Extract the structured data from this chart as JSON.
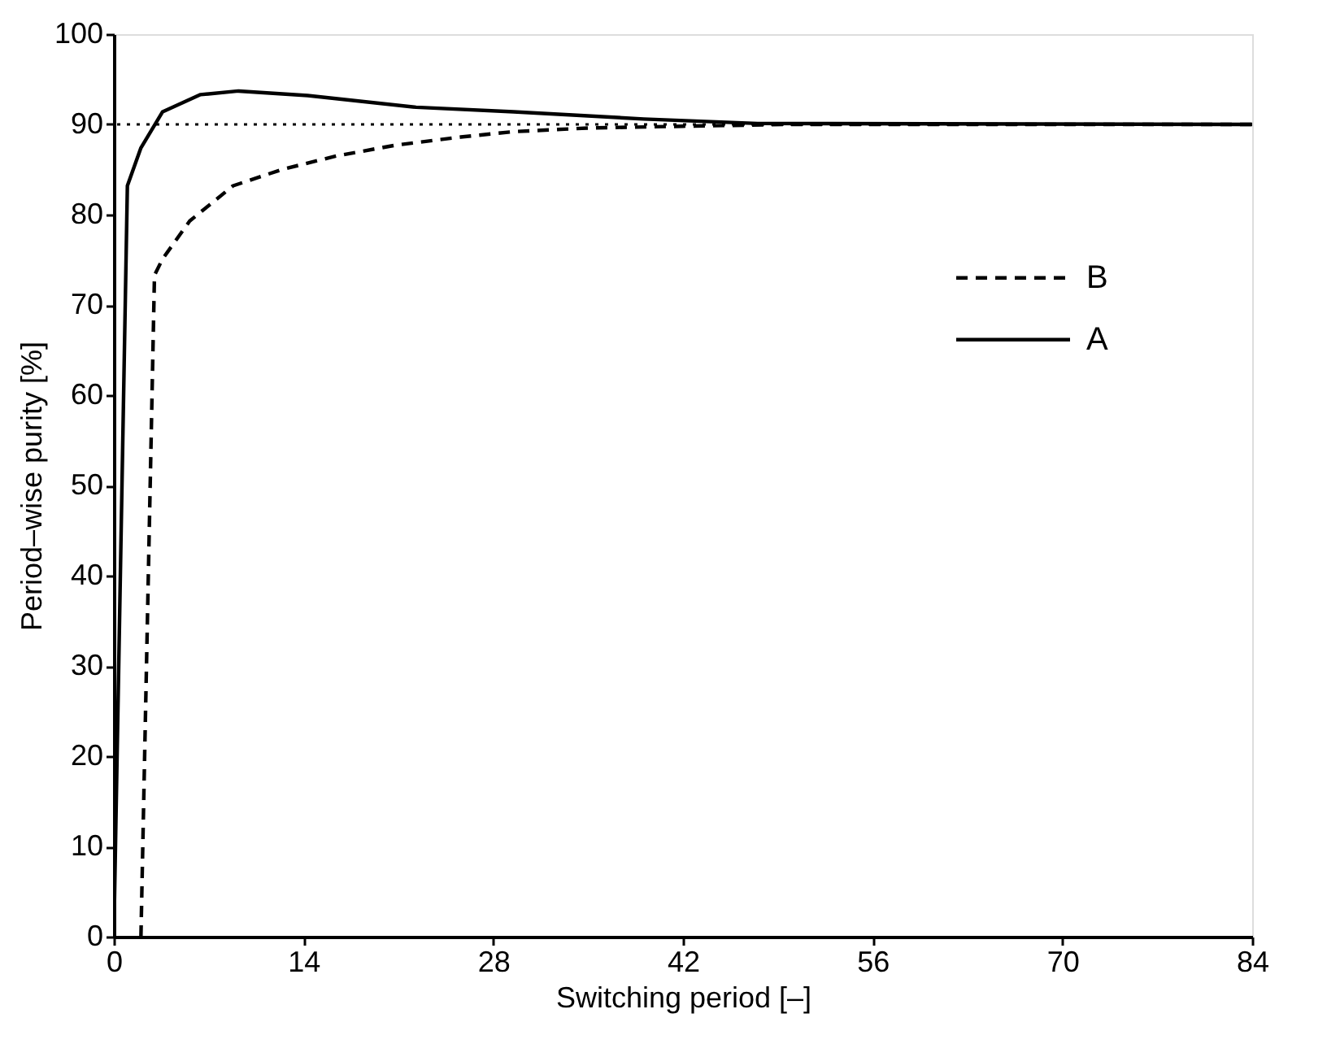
{
  "chart_data": {
    "type": "line",
    "xlabel": "Switching period [–]",
    "ylabel": "Period–wise purity [%]",
    "xlim": [
      0,
      84
    ],
    "xticks": [
      0,
      14,
      28,
      42,
      56,
      70,
      84
    ],
    "ylim": [
      0,
      100
    ],
    "yticks": [
      0,
      10,
      20,
      30,
      40,
      50,
      60,
      70,
      80,
      90,
      100
    ],
    "grid": false,
    "legend": "right",
    "marker": "none",
    "ref_lines": [
      {
        "axis": "y",
        "value": 90,
        "color": "#000000",
        "line_style": "dotted"
      }
    ],
    "series": [
      {
        "name": "B",
        "color": "#000000",
        "line_style": "dashed",
        "x": [
          2.0,
          3.0,
          3.6,
          5.6,
          8.8,
          12.4,
          16.4,
          20.8,
          25.6,
          29.5,
          35,
          42,
          50,
          84
        ],
        "values": [
          0,
          73.3,
          75.1,
          79.3,
          83.2,
          85.0,
          86.5,
          87.7,
          88.6,
          89.2,
          89.6,
          89.8,
          90,
          90
        ]
      },
      {
        "name": "A",
        "color": "#000000",
        "line_style": "solid",
        "x": [
          0,
          1.0,
          2.0,
          3.6,
          6.4,
          9.2,
          14.3,
          22.3,
          29.5,
          39.1,
          47.5,
          84
        ],
        "values": [
          0,
          83.2,
          87.4,
          91.4,
          93.3,
          93.7,
          93.2,
          91.9,
          91.4,
          90.6,
          90.1,
          90
        ]
      }
    ]
  }
}
